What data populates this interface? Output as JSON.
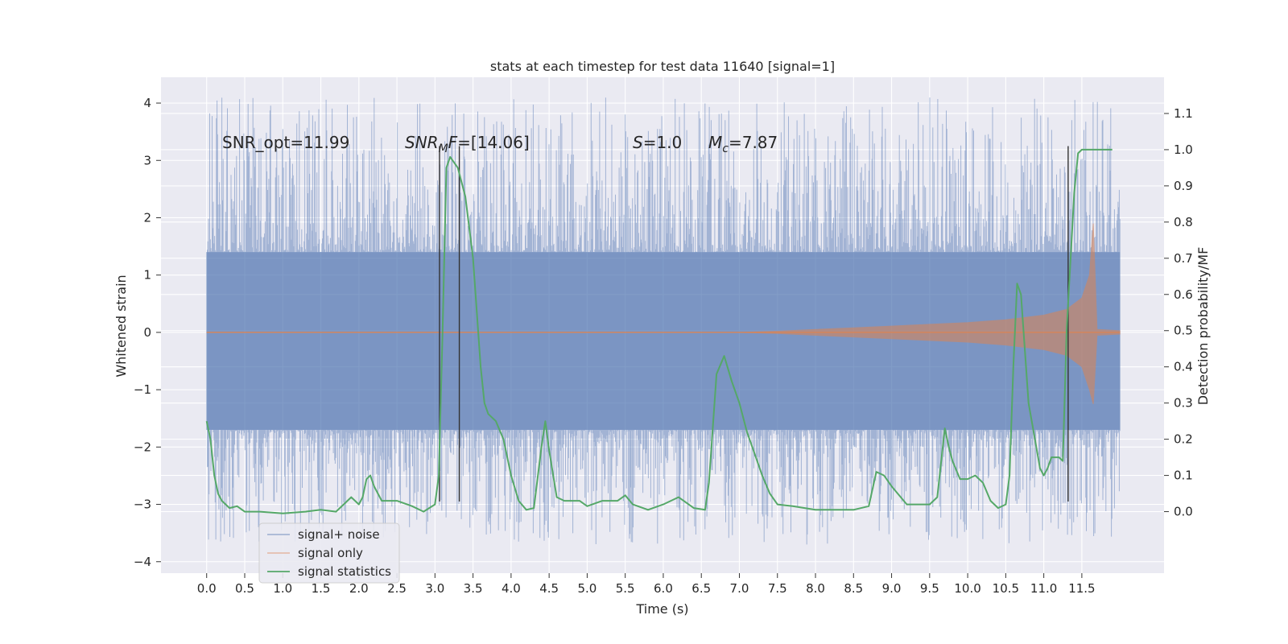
{
  "chart_data": {
    "type": "line",
    "title": "stats at each timestep for test data 11640 [signal=1]",
    "xlabel": "Time (s)",
    "ylabel": "Whitened strain",
    "y2label": "Detection probability/MF",
    "xlim": [
      -0.6,
      12.58
    ],
    "ylim": [
      -4.2,
      4.45
    ],
    "y2lim": [
      -0.17,
      1.2
    ],
    "x_ticks": [
      0.0,
      0.5,
      1.0,
      1.5,
      2.0,
      2.5,
      3.0,
      3.5,
      4.0,
      4.5,
      5.0,
      5.5,
      6.0,
      6.5,
      7.0,
      7.5,
      8.0,
      8.5,
      9.0,
      9.5,
      10.0,
      10.5,
      11.0,
      11.5
    ],
    "x_tick_labels": [
      "0.0",
      "0.5",
      "1.0",
      "1.5",
      "2.0",
      "2.5",
      "3.0",
      "3.5",
      "4.0",
      "4.5",
      "5.0",
      "5.5",
      "6.0",
      "6.5",
      "7.0",
      "7.5",
      "8.0",
      "8.5",
      "9.0",
      "9.5",
      "10.0",
      "10.5",
      "11.0",
      "11.5"
    ],
    "y_ticks": [
      -4,
      -3,
      -2,
      -1,
      0,
      1,
      2,
      3,
      4
    ],
    "y_tick_labels": [
      "−4",
      "−3",
      "−2",
      "−1",
      "0",
      "1",
      "2",
      "3",
      "4"
    ],
    "y2_ticks": [
      0.0,
      0.1,
      0.2,
      0.3,
      0.4,
      0.5,
      0.6,
      0.7,
      0.8,
      0.9,
      1.0,
      1.1
    ],
    "y2_tick_labels": [
      "0.0",
      "0.1",
      "0.2",
      "0.3",
      "0.4",
      "0.5",
      "0.6",
      "0.7",
      "0.8",
      "0.9",
      "1.0",
      "1.1"
    ],
    "grid": true,
    "legend_position": "lower-left",
    "annotations": {
      "snr_opt": "SNR_opt=11.99",
      "snr_mf_var": "SNR",
      "snr_mf_sub": "M",
      "snr_mf_var2": "F",
      "snr_mf_val": "=[14.06]",
      "s_var": "S",
      "s_val": "=1.0",
      "mc_var": "M",
      "mc_sub": "c",
      "mc_val": "=7.87"
    },
    "series": [
      {
        "name": "signal+ noise",
        "axis": "left",
        "color": "#4c72b0",
        "description_kind": "noise band",
        "x_range": [
          0.0,
          12.0
        ],
        "core_range": [
          -1.7,
          1.4
        ],
        "peak_range": [
          -3.7,
          4.1
        ]
      },
      {
        "name": "signal only",
        "axis": "left",
        "color": "#dd8452",
        "description_kind": "chirp",
        "envelope": {
          "x": [
            0.0,
            7.0,
            7.5,
            8.0,
            8.5,
            9.0,
            9.5,
            10.0,
            10.5,
            11.0,
            11.3,
            11.5,
            11.6,
            11.65,
            11.7,
            12.0
          ],
          "upper": [
            0.0,
            0.0,
            0.02,
            0.05,
            0.08,
            0.11,
            0.14,
            0.17,
            0.22,
            0.3,
            0.4,
            0.6,
            1.0,
            1.9,
            0.05,
            0.03
          ],
          "lower": [
            0.0,
            0.0,
            -0.02,
            -0.05,
            -0.08,
            -0.11,
            -0.14,
            -0.17,
            -0.22,
            -0.3,
            -0.4,
            -0.6,
            -1.0,
            -1.25,
            -0.05,
            -0.03
          ]
        }
      },
      {
        "name": "signal statistics",
        "axis": "right",
        "color": "#55a868",
        "x": [
          0.0,
          0.05,
          0.1,
          0.15,
          0.2,
          0.3,
          0.4,
          0.5,
          0.7,
          1.0,
          1.3,
          1.5,
          1.7,
          1.8,
          1.9,
          2.0,
          2.05,
          2.1,
          2.15,
          2.2,
          2.3,
          2.5,
          2.7,
          2.85,
          3.0,
          3.05,
          3.1,
          3.15,
          3.2,
          3.3,
          3.4,
          3.5,
          3.6,
          3.65,
          3.7,
          3.8,
          3.9,
          4.0,
          4.1,
          4.2,
          4.3,
          4.4,
          4.45,
          4.5,
          4.6,
          4.7,
          4.9,
          5.0,
          5.2,
          5.4,
          5.5,
          5.6,
          5.8,
          6.0,
          6.2,
          6.4,
          6.55,
          6.6,
          6.7,
          6.8,
          6.9,
          7.0,
          7.1,
          7.2,
          7.3,
          7.4,
          7.5,
          7.7,
          8.0,
          8.5,
          8.7,
          8.8,
          8.9,
          9.0,
          9.2,
          9.4,
          9.5,
          9.6,
          9.7,
          9.75,
          9.8,
          9.9,
          10.0,
          10.1,
          10.2,
          10.3,
          10.4,
          10.5,
          10.55,
          10.6,
          10.65,
          10.7,
          10.8,
          10.9,
          10.95,
          11.0,
          11.05,
          11.1,
          11.15,
          11.2,
          11.25,
          11.3,
          11.4,
          11.45,
          11.5,
          11.6,
          11.7,
          11.9
        ],
        "values": [
          0.25,
          0.2,
          0.1,
          0.05,
          0.03,
          0.01,
          0.015,
          0.0,
          0.0,
          -0.005,
          0.0,
          0.005,
          0.0,
          0.02,
          0.04,
          0.02,
          0.04,
          0.09,
          0.1,
          0.07,
          0.03,
          0.03,
          0.015,
          0.0,
          0.02,
          0.1,
          0.5,
          0.95,
          0.98,
          0.95,
          0.87,
          0.7,
          0.4,
          0.3,
          0.27,
          0.25,
          0.2,
          0.1,
          0.03,
          0.005,
          0.01,
          0.18,
          0.25,
          0.17,
          0.04,
          0.03,
          0.03,
          0.015,
          0.03,
          0.03,
          0.045,
          0.02,
          0.005,
          0.02,
          0.04,
          0.01,
          0.005,
          0.08,
          0.38,
          0.43,
          0.36,
          0.3,
          0.22,
          0.16,
          0.1,
          0.05,
          0.02,
          0.015,
          0.005,
          0.005,
          0.015,
          0.11,
          0.1,
          0.07,
          0.02,
          0.02,
          0.02,
          0.04,
          0.23,
          0.18,
          0.14,
          0.09,
          0.09,
          0.1,
          0.08,
          0.03,
          0.01,
          0.02,
          0.1,
          0.4,
          0.63,
          0.6,
          0.3,
          0.18,
          0.12,
          0.1,
          0.12,
          0.15,
          0.15,
          0.15,
          0.14,
          0.5,
          0.88,
          0.99,
          1.0,
          1.0,
          1.0,
          1.0
        ]
      }
    ],
    "vertical_lines": [
      3.06,
      3.32,
      11.32
    ],
    "vertical_line_range": [
      -2.95,
      3.25
    ],
    "legend": [
      {
        "label": "signal+ noise",
        "color": "#4c72b0"
      },
      {
        "label": "signal only",
        "color": "#dd8452"
      },
      {
        "label": "signal statistics",
        "color": "#55a868"
      }
    ]
  }
}
